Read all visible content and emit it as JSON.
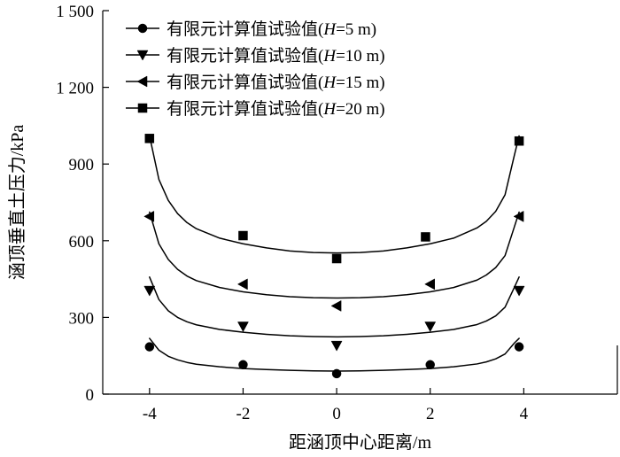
{
  "chart_data": {
    "type": "line",
    "title": "",
    "xlabel": "距涵顶中心距离/m",
    "ylabel": "涵顶垂直土压力/kPa",
    "xlim": [
      -5,
      6
    ],
    "ylim": [
      0,
      1500
    ],
    "xticks": [
      -4,
      -2,
      0,
      2,
      4
    ],
    "yticks": [
      0,
      300,
      600,
      900,
      1200,
      1500
    ],
    "xtick_labels": [
      "-4",
      "-2",
      "0",
      "2",
      "4"
    ],
    "ytick_labels": [
      "0",
      "300",
      "600",
      "900",
      "1 200",
      "1 500"
    ],
    "grid": false,
    "legend_position": "top-center",
    "series": [
      {
        "name": "有限元计算值试验值(H=5 m)",
        "legend_prefix": "有限元计算值试验值(",
        "legend_var": "H",
        "legend_suffix": "=5 m)",
        "marker": "circle",
        "points_x": [
          -4,
          -2,
          0,
          2,
          3.9
        ],
        "points_y": [
          185,
          115,
          80,
          115,
          185
        ],
        "curve_x": [
          -4,
          -3.8,
          -3.6,
          -3.4,
          -3.2,
          -3,
          -2.5,
          -2,
          -1.5,
          -1,
          -0.5,
          0,
          0.5,
          1,
          1.5,
          2,
          2.5,
          3,
          3.2,
          3.4,
          3.6,
          3.8,
          3.9
        ],
        "curve_y": [
          218,
          172,
          148,
          134,
          124,
          117,
          107,
          100,
          96,
          93,
          91,
          90,
          91,
          93,
          96,
          100,
          107,
          118,
          126,
          138,
          157,
          200,
          218
        ]
      },
      {
        "name": "有限元计算值试验值(H=10 m)",
        "legend_prefix": "有限元计算值试验值(",
        "legend_var": "H",
        "legend_suffix": "=10 m)",
        "marker": "triangle-down",
        "points_x": [
          -4,
          -2,
          0,
          2,
          3.9
        ],
        "points_y": [
          405,
          265,
          190,
          265,
          405
        ],
        "curve_x": [
          -4,
          -3.8,
          -3.6,
          -3.4,
          -3.2,
          -3,
          -2.5,
          -2,
          -1.5,
          -1,
          -0.5,
          0,
          0.5,
          1,
          1.5,
          2,
          2.5,
          3,
          3.2,
          3.4,
          3.6,
          3.8,
          3.9
        ],
        "curve_y": [
          458,
          370,
          326,
          300,
          283,
          271,
          253,
          242,
          234,
          228,
          225,
          224,
          225,
          228,
          234,
          242,
          253,
          272,
          286,
          306,
          340,
          418,
          458
        ]
      },
      {
        "name": "有限元计算值试验值(H=15 m)",
        "legend_prefix": "有限元计算值试验值(",
        "legend_var": "H",
        "legend_suffix": "=15 m)",
        "marker": "triangle-left",
        "points_x": [
          -4,
          -2,
          0,
          2,
          3.9
        ],
        "points_y": [
          695,
          430,
          345,
          430,
          695
        ],
        "curve_x": [
          -4,
          -3.8,
          -3.6,
          -3.4,
          -3.2,
          -3,
          -2.5,
          -2,
          -1.5,
          -1,
          -0.5,
          0,
          0.5,
          1,
          1.5,
          2,
          2.5,
          3,
          3.2,
          3.4,
          3.6,
          3.8,
          3.9
        ],
        "curve_y": [
          712,
          588,
          527,
          488,
          462,
          444,
          417,
          400,
          389,
          381,
          377,
          376,
          377,
          381,
          389,
          400,
          417,
          446,
          466,
          495,
          542,
          655,
          712
        ]
      },
      {
        "name": "有限元计算值试验值(H=20 m)",
        "legend_prefix": "有限元计算值试验值(",
        "legend_var": "H",
        "legend_suffix": "=20 m)",
        "marker": "square",
        "points_x": [
          -4,
          -2,
          0,
          1.9,
          3.9
        ],
        "points_y": [
          1000,
          620,
          530,
          615,
          990
        ],
        "curve_x": [
          -4,
          -3.8,
          -3.6,
          -3.4,
          -3.2,
          -3,
          -2.5,
          -2,
          -1.5,
          -1,
          -0.5,
          0,
          0.5,
          1,
          1.5,
          2,
          2.5,
          3,
          3.2,
          3.4,
          3.6,
          3.8,
          3.9
        ],
        "curve_y": [
          1010,
          840,
          758,
          706,
          671,
          647,
          610,
          588,
          572,
          560,
          554,
          552,
          554,
          560,
          572,
          588,
          610,
          650,
          676,
          715,
          780,
          935,
          1010
        ]
      }
    ]
  }
}
